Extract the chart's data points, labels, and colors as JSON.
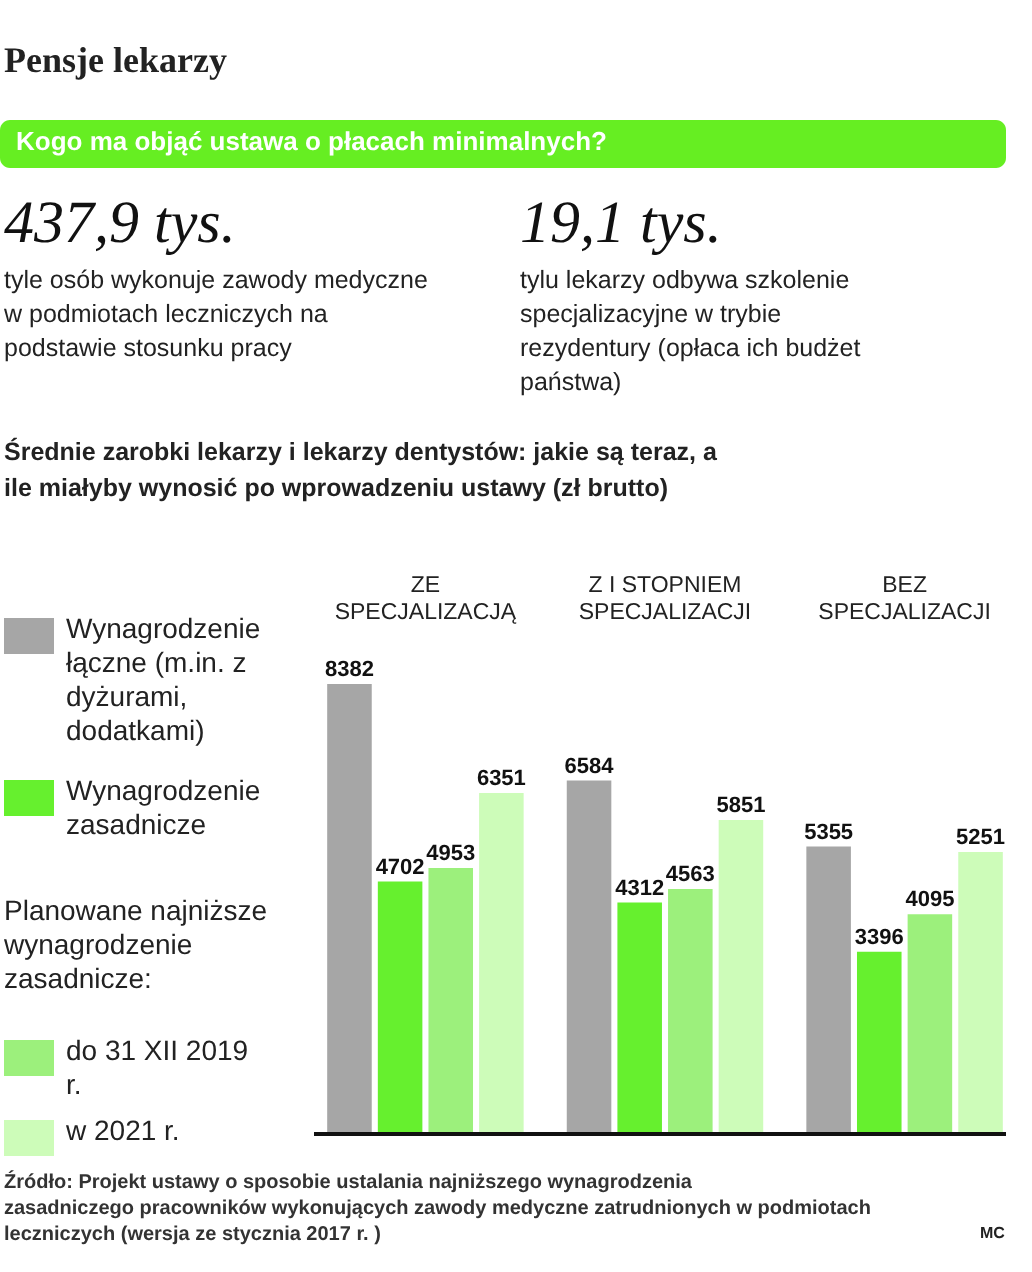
{
  "chart_data": {
    "type": "bar",
    "title": "Pensje lekarzy",
    "subtitle": "Kogo ma objąć ustawa o płacach minimalnych?",
    "annotations": [
      "437,9 tys.",
      "tyle osób wykonuje zawody medyczne w podmiotach leczniczych na podstawie stosunku pracy",
      "19,1 tys.",
      "tylu lekarzy odbywa szkolenie specjalizacyjne w trybie rezydentury (opłaca ich budżet państwa)",
      "Średnie zarobki lekarzy i lekarzy dentystów: jakie są teraz, a ile miałyby wynosić po wprowadzeniu ustawy (zł brutto)",
      "Planowane najniższe wynagrodzenie zasadnicze:",
      "Źródło: Projekt ustawy o sposobie ustalania najniższego wynagrodzenia zasadniczego pracowników wykonujących zawody medyczne zatrudnionych w podmiotach leczniczych (wersja ze stycznia 2017 r. )",
      "MC"
    ],
    "categories": [
      "ZE SPECJALIZACJĄ",
      "Z I STOPNIEM SPECJALIZACJI",
      "BEZ SPECJALIZACJI"
    ],
    "series": [
      {
        "name": "Wynagrodzenie łączne (m.in. z dyżurami, dodatkami)",
        "color": "#a6a6a6",
        "values": [
          8382,
          6584,
          5355
        ]
      },
      {
        "name": "Wynagrodzenie zasadnicze",
        "color": "#66f02e",
        "values": [
          4702,
          4312,
          3396
        ]
      },
      {
        "name": "do 31 XII 2019 r.",
        "color": "#9cf07c",
        "values": [
          4953,
          4563,
          4095
        ]
      },
      {
        "name": "w 2021 r.",
        "color": "#cdfcb9",
        "values": [
          6351,
          5851,
          5251
        ]
      }
    ],
    "data_labels": true,
    "legend": "left"
  }
}
